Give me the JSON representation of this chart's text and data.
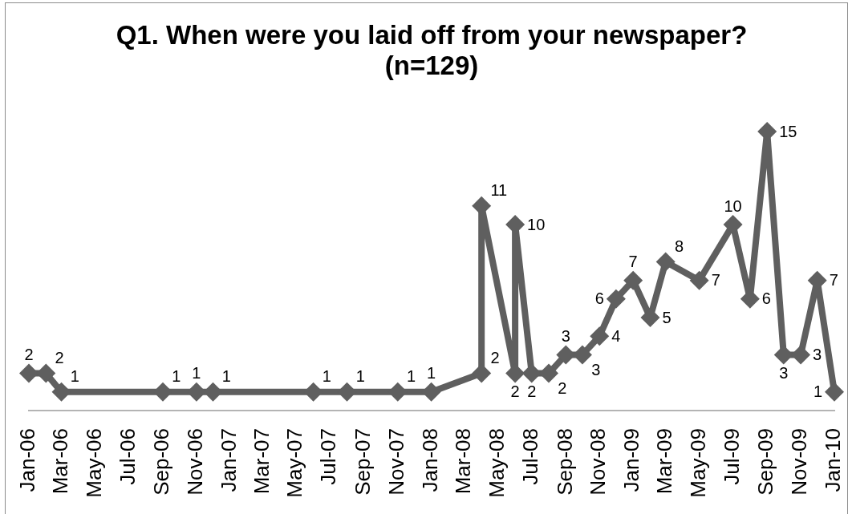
{
  "chart_data": {
    "type": "line",
    "title": "Q1. When were you laid off from your newspaper?\n(n=129)",
    "x": [
      "2006-01",
      "2006-02",
      "2006-03",
      "2006-09",
      "2006-11",
      "2006-12",
      "2007-06",
      "2007-08",
      "2007-11",
      "2008-01",
      "2008-04",
      "2008-04",
      "2008-06",
      "2008-06",
      "2008-07",
      "2008-08",
      "2008-09",
      "2008-10",
      "2008-11",
      "2008-12",
      "2009-01",
      "2009-02",
      "2009-03",
      "2009-05",
      "2009-07",
      "2009-08",
      "2009-09",
      "2009-10",
      "2009-11",
      "2009-12",
      "2010-01"
    ],
    "values": [
      2,
      2,
      1,
      1,
      1,
      1,
      1,
      1,
      1,
      1,
      2,
      11,
      2,
      10,
      2,
      2,
      3,
      3,
      4,
      6,
      7,
      5,
      8,
      7,
      10,
      6,
      15,
      3,
      3,
      7,
      1
    ],
    "color": "#5f5f5f",
    "marker": "diamond",
    "data_labels": true,
    "legend": false,
    "grid": false,
    "tick_labels": "x",
    "xlim": [
      "2006-01",
      "2010-01"
    ],
    "xticks": [
      {
        "value": "2006-01",
        "label": "Jan-06"
      },
      {
        "value": "2006-03",
        "label": "Mar-06"
      },
      {
        "value": "2006-05",
        "label": "May-06"
      },
      {
        "value": "2006-07",
        "label": "Jul-06"
      },
      {
        "value": "2006-09",
        "label": "Sep-06"
      },
      {
        "value": "2006-11",
        "label": "Nov-06"
      },
      {
        "value": "2007-01",
        "label": "Jan-07"
      },
      {
        "value": "2007-03",
        "label": "Mar-07"
      },
      {
        "value": "2007-05",
        "label": "May-07"
      },
      {
        "value": "2007-07",
        "label": "Jul-07"
      },
      {
        "value": "2007-09",
        "label": "Sep-07"
      },
      {
        "value": "2007-11",
        "label": "Nov-07"
      },
      {
        "value": "2008-01",
        "label": "Jan-08"
      },
      {
        "value": "2008-03",
        "label": "Mar-08"
      },
      {
        "value": "2008-05",
        "label": "May-08"
      },
      {
        "value": "2008-07",
        "label": "Jul-08"
      },
      {
        "value": "2008-09",
        "label": "Sep-08"
      },
      {
        "value": "2008-11",
        "label": "Nov-08"
      },
      {
        "value": "2009-01",
        "label": "Jan-09"
      },
      {
        "value": "2009-03",
        "label": "Mar-09"
      },
      {
        "value": "2009-05",
        "label": "May-09"
      },
      {
        "value": "2009-07",
        "label": "Jul-09"
      },
      {
        "value": "2009-09",
        "label": "Sep-09"
      },
      {
        "value": "2009-11",
        "label": "Nov-09"
      },
      {
        "value": "2010-01",
        "label": "Jan-10"
      }
    ]
  }
}
